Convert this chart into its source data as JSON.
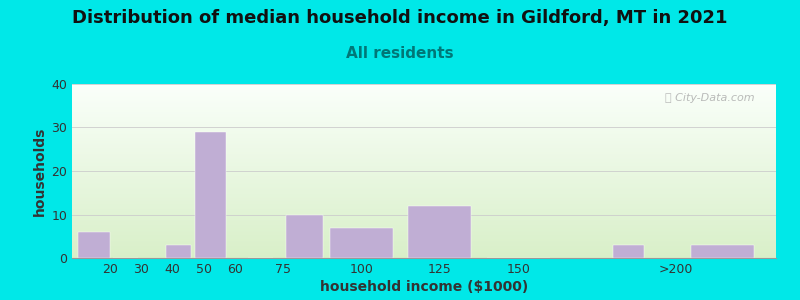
{
  "title": "Distribution of median household income in Gildford, MT in 2021",
  "subtitle": "All residents",
  "xlabel": "household income ($1000)",
  "ylabel": "households",
  "bar_centers": [
    15,
    25,
    42,
    52,
    68,
    82,
    100,
    125,
    150,
    185,
    215
  ],
  "bar_values": [
    6,
    0,
    3,
    29,
    0,
    10,
    7,
    12,
    0,
    3,
    3
  ],
  "bar_widths": [
    10,
    8,
    8,
    10,
    8,
    12,
    20,
    20,
    20,
    10,
    20
  ],
  "bar_color": "#c0aed4",
  "bar_edgecolor": "#c0aed4",
  "background_color": "#00e8e8",
  "plot_bg_top": "#f8fff8",
  "plot_bg_bottom": "#d8efc8",
  "yticks": [
    0,
    10,
    20,
    30,
    40
  ],
  "ylim": [
    0,
    40
  ],
  "xtick_labels": [
    "20",
    "30",
    "40",
    "50",
    "60",
    "75",
    "100",
    "125",
    "150",
    ">200"
  ],
  "xtick_positions": [
    20,
    30,
    40,
    50,
    60,
    75,
    100,
    125,
    150,
    200
  ],
  "xlim": [
    8,
    232
  ],
  "title_fontsize": 13,
  "subtitle_fontsize": 11,
  "subtitle_color": "#007777",
  "axis_label_fontsize": 10,
  "tick_fontsize": 9,
  "watermark_text": "ⓘ City-Data.com",
  "watermark_color": "#aaaaaa"
}
